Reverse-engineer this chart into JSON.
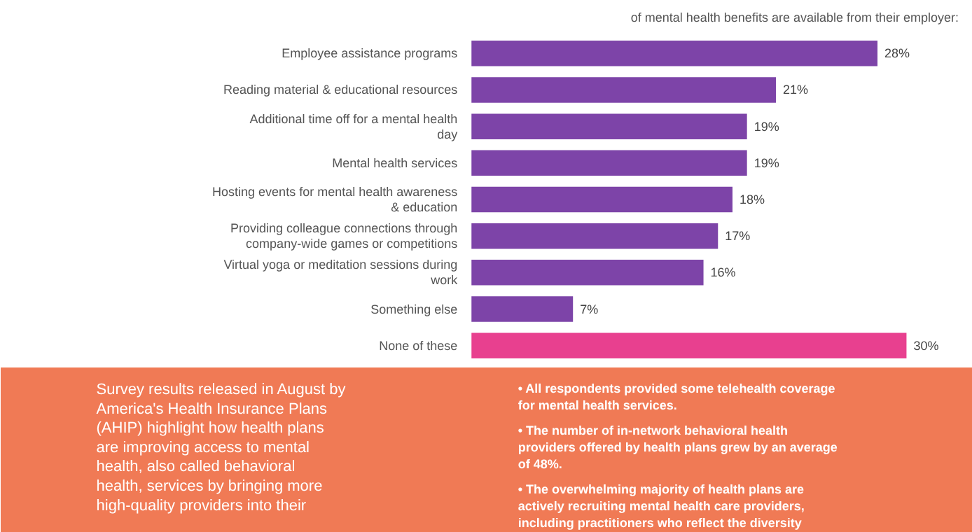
{
  "chart_data": {
    "type": "bar",
    "orientation": "horizontal",
    "title": "of mental health benefits are available from their employer:",
    "categories": [
      "Employee assistance programs",
      "Reading material & educational resources",
      "Additional time off for a mental health day",
      "Mental health services",
      "Hosting events for mental health awareness & education",
      "Providing colleague connections through company-wide games or competitions",
      "Virtual yoga or meditation sessions during work",
      "Something else",
      "None of these"
    ],
    "values": [
      28,
      21,
      19,
      19,
      18,
      17,
      16,
      7,
      30
    ],
    "colors": [
      "#7d44a8",
      "#7d44a8",
      "#7d44a8",
      "#7d44a8",
      "#7d44a8",
      "#7d44a8",
      "#7d44a8",
      "#7d44a8",
      "#e8408f"
    ],
    "value_labels": [
      "28%",
      "21%",
      "19%",
      "19%",
      "18%",
      "17%",
      "16%",
      "7%",
      "30%"
    ],
    "annotations": [
      "Survey results released in August by America's Health Insurance Plans (AHIP) highlight how health plans are improving access to mental health, also called behavioral health, services by bringing more high-quality providers into their",
      "• All respondents provided some telehealth coverage for mental health services.",
      "• The number of in-network behavioral health providers offered by health plans grew by an average of 48%.",
      "• The overwhelming majority of health plans are actively recruiting mental health care providers, including practitioners who reflect the diversity"
    ]
  }
}
